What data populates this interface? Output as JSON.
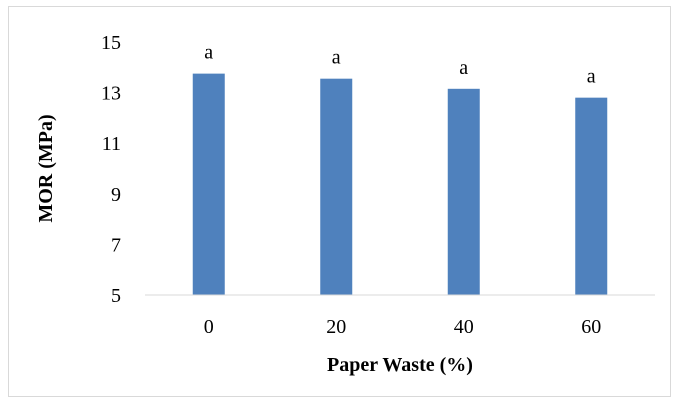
{
  "chart_data": {
    "type": "bar",
    "categories": [
      "0",
      "20",
      "40",
      "60"
    ],
    "values": [
      13.75,
      13.55,
      13.15,
      12.8
    ],
    "data_labels": [
      "a",
      "a",
      "a",
      "a"
    ],
    "title": "",
    "xlabel": "Paper Waste  (%)",
    "ylabel": "MOR (MPa)",
    "ylim": [
      5,
      15
    ],
    "yticks": [
      "5",
      "7",
      "9",
      "11",
      "13",
      "15"
    ],
    "grid": false,
    "legend": "none",
    "bar_color": "#4f81bd"
  }
}
